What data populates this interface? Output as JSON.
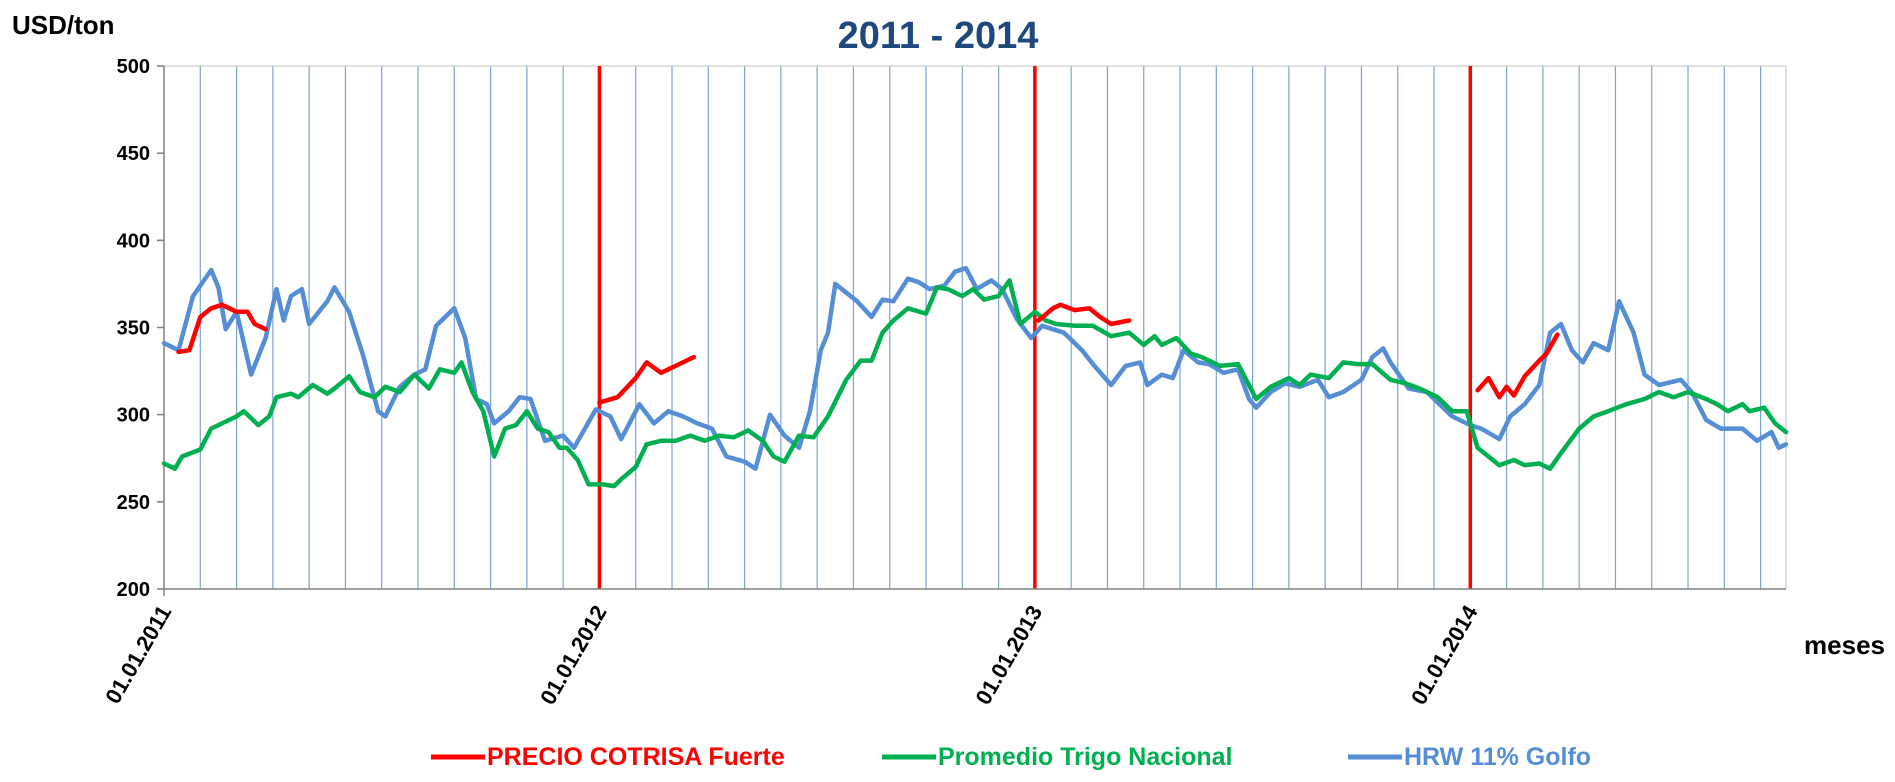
{
  "chart_data": {
    "type": "line",
    "title": "2011 - 2014",
    "y_label": "USD/ton",
    "x_label": "meses",
    "xlim": [
      0,
      44.7
    ],
    "ylim": [
      200,
      500
    ],
    "yticks": [
      200,
      250,
      300,
      350,
      400,
      450,
      500
    ],
    "xticks": [
      {
        "value": 0,
        "label": "01.01.2011"
      },
      {
        "value": 12,
        "label": "01.01.2012"
      },
      {
        "value": 24,
        "label": "01.01.2013"
      },
      {
        "value": 36,
        "label": "01.01.2014"
      }
    ],
    "xminor": [
      1,
      2,
      3,
      4,
      5,
      6,
      7,
      8,
      9,
      10,
      11,
      13,
      14,
      15,
      16,
      17,
      18,
      19,
      20,
      21,
      22,
      23,
      25,
      26,
      27,
      28,
      29,
      30,
      31,
      32,
      33,
      34,
      35,
      37,
      38,
      39,
      40,
      41,
      42,
      43,
      44
    ],
    "minor_grid_color": "#7aa3d8",
    "year_line_color": "#ff0000",
    "legend": "bottom",
    "series": [
      {
        "name": "PRECIO COTRISA Fuerte",
        "color": "#ff0000",
        "x": [
          0.4,
          0.7,
          1.0,
          1.3,
          1.6,
          2.0,
          2.3,
          2.5,
          2.8,
          null,
          12.0,
          12.5,
          13.0,
          13.3,
          13.7,
          14.1,
          14.6,
          null,
          24.1,
          24.5,
          24.7,
          25.1,
          25.5,
          25.8,
          26.1,
          26.6,
          null,
          36.2,
          36.5,
          36.8,
          37.0,
          37.2,
          37.5,
          37.9,
          38.1,
          38.4
        ],
        "values": [
          336,
          337,
          356,
          361,
          363,
          359,
          359,
          352,
          349,
          null,
          307,
          310,
          321,
          330,
          324,
          328,
          333,
          null,
          354,
          361,
          363,
          360,
          361,
          356,
          352,
          354,
          null,
          314,
          321,
          310,
          316,
          311,
          322,
          331,
          335,
          346
        ]
      },
      {
        "name": "Promedio Trigo Nacional",
        "color": "#00b050",
        "x": [
          0,
          0.3,
          0.5,
          1.0,
          1.3,
          1.6,
          2.0,
          2.2,
          2.6,
          2.9,
          3.1,
          3.5,
          3.7,
          4.1,
          4.5,
          4.7,
          5.1,
          5.4,
          5.8,
          6.1,
          6.5,
          6.9,
          7.3,
          7.6,
          8.0,
          8.2,
          8.5,
          8.8,
          9.1,
          9.4,
          9.7,
          10.0,
          10.3,
          10.6,
          10.9,
          11.1,
          11.4,
          11.7,
          12.1,
          12.4,
          12.6,
          13.0,
          13.3,
          13.7,
          14.1,
          14.5,
          14.9,
          15.3,
          15.7,
          16.1,
          16.5,
          16.8,
          17.1,
          17.5,
          17.9,
          18.3,
          18.8,
          19.2,
          19.5,
          19.8,
          20.1,
          20.5,
          21.0,
          21.3,
          21.6,
          22.0,
          22.3,
          22.6,
          23.0,
          23.3,
          23.6,
          24.0,
          24.3,
          24.6,
          25.1,
          25.6,
          26.1,
          26.6,
          27.0,
          27.3,
          27.5,
          27.9,
          28.3,
          28.6,
          29.1,
          29.6,
          30.1,
          30.5,
          31.0,
          31.3,
          31.6,
          32.1,
          32.5,
          32.9,
          33.3,
          33.8,
          34.2,
          34.6,
          35.1,
          35.5,
          35.9,
          36.2,
          36.5,
          36.8,
          37.2,
          37.5,
          37.9,
          38.2,
          38.5,
          39.0,
          39.4,
          39.8,
          40.3,
          40.8,
          41.2,
          41.6,
          42.0,
          42.5,
          42.8,
          43.1,
          43.5,
          43.7,
          44.1,
          44.4,
          44.7
        ],
        "values": [
          272,
          269,
          276,
          280,
          292,
          295,
          299,
          302,
          294,
          299,
          310,
          312,
          310,
          317,
          312,
          315,
          322,
          313,
          310,
          316,
          313,
          323,
          315,
          326,
          324,
          330,
          313,
          302,
          276,
          292,
          294,
          302,
          292,
          290,
          281,
          281,
          274,
          260,
          260,
          259,
          263,
          270,
          283,
          285,
          285,
          288,
          285,
          288,
          287,
          291,
          285,
          276,
          273,
          288,
          287,
          299,
          320,
          331,
          331,
          347,
          354,
          361,
          358,
          373,
          372,
          368,
          372,
          366,
          368,
          377,
          352,
          359,
          354,
          352,
          351,
          351,
          345,
          347,
          340,
          345,
          340,
          344,
          335,
          333,
          328,
          329,
          309,
          316,
          321,
          317,
          323,
          321,
          330,
          329,
          329,
          320,
          318,
          315,
          310,
          302,
          302,
          281,
          276,
          271,
          274,
          271,
          272,
          269,
          278,
          292,
          299,
          302,
          306,
          309,
          313,
          310,
          313,
          309,
          306,
          302,
          306,
          302,
          304,
          295,
          290
        ]
      },
      {
        "name": "HRW 11%  Golfo",
        "color": "#558ed5",
        "x": [
          0,
          0.4,
          0.8,
          1.3,
          1.5,
          1.7,
          2.0,
          2.4,
          2.8,
          3.1,
          3.3,
          3.5,
          3.8,
          4.0,
          4.5,
          4.7,
          5.1,
          5.5,
          5.9,
          6.1,
          6.5,
          6.9,
          7.2,
          7.5,
          8.0,
          8.3,
          8.6,
          8.9,
          9.1,
          9.5,
          9.8,
          10.1,
          10.5,
          11.0,
          11.3,
          11.9,
          12.3,
          12.6,
          13.1,
          13.5,
          13.9,
          14.3,
          14.7,
          15.1,
          15.5,
          16.0,
          16.3,
          16.7,
          17.1,
          17.5,
          17.8,
          18.1,
          18.3,
          18.5,
          18.8,
          19.1,
          19.5,
          19.8,
          20.1,
          20.5,
          20.8,
          21.1,
          21.5,
          21.8,
          22.1,
          22.4,
          22.8,
          23.1,
          23.5,
          23.9,
          24.2,
          24.8,
          25.3,
          25.6,
          26.1,
          26.5,
          26.9,
          27.1,
          27.5,
          27.8,
          28.1,
          28.5,
          28.8,
          29.2,
          29.6,
          29.9,
          30.1,
          30.5,
          30.9,
          31.3,
          31.8,
          32.1,
          32.5,
          33.0,
          33.3,
          33.6,
          33.8,
          34.3,
          34.8,
          35.5,
          36.0,
          36.3,
          36.8,
          37.1,
          37.5,
          37.9,
          38.2,
          38.5,
          38.8,
          39.1,
          39.4,
          39.8,
          40.1,
          40.5,
          40.8,
          41.2,
          41.8,
          42.1,
          42.5,
          42.9,
          43.5,
          43.9,
          44.3,
          44.5,
          44.7
        ],
        "values": [
          341,
          337,
          368,
          383,
          373,
          349,
          359,
          323,
          344,
          372,
          354,
          368,
          372,
          352,
          365,
          373,
          359,
          333,
          302,
          299,
          316,
          323,
          326,
          351,
          361,
          344,
          309,
          306,
          295,
          302,
          310,
          309,
          285,
          288,
          281,
          303,
          299,
          286,
          306,
          295,
          302,
          299,
          295,
          292,
          276,
          273,
          269,
          300,
          288,
          281,
          302,
          337,
          347,
          375,
          370,
          365,
          356,
          366,
          365,
          378,
          376,
          372,
          374,
          382,
          384,
          372,
          377,
          372,
          355,
          344,
          351,
          347,
          337,
          329,
          317,
          328,
          330,
          317,
          323,
          321,
          337,
          330,
          329,
          324,
          326,
          309,
          304,
          313,
          318,
          316,
          320,
          310,
          313,
          320,
          333,
          338,
          330,
          315,
          313,
          299,
          294,
          292,
          286,
          299,
          306,
          317,
          347,
          352,
          337,
          330,
          341,
          337,
          365,
          347,
          323,
          317,
          320,
          313,
          297,
          292,
          292,
          285,
          290,
          281,
          283
        ]
      }
    ]
  }
}
